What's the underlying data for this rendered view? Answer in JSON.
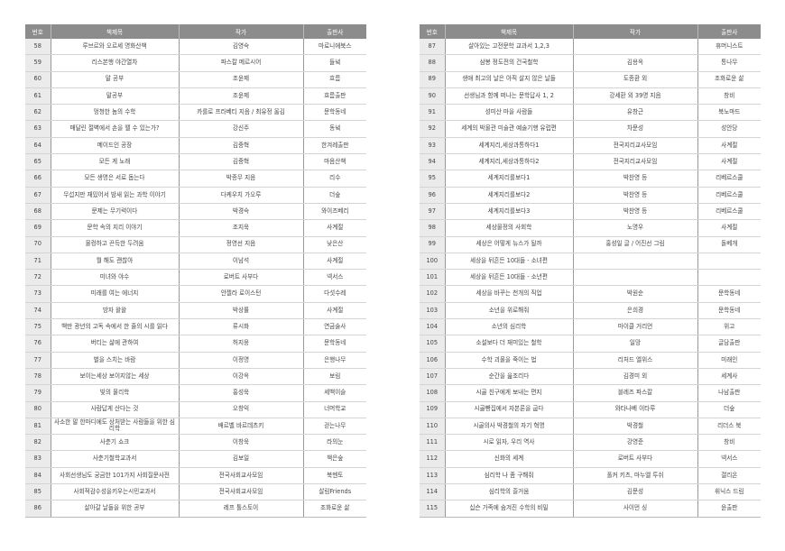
{
  "headers": [
    "번호",
    "책제목",
    "작가",
    "출판사"
  ],
  "left_rows": [
    [
      "58",
      "루브르와 오르세 명화산책",
      "김영숙",
      "마로니에북스"
    ],
    [
      "59",
      "리스본행 야간열차",
      "파스칼 메르시어",
      "들녘"
    ],
    [
      "60",
      "말 공부",
      "조윤제",
      "흐름"
    ],
    [
      "61",
      "말공부",
      "조윤제",
      "흐름출판"
    ],
    [
      "62",
      "멍청한 놈의 수학",
      "카를로 프라베티 지음 / 최유정 옮김",
      "문학동네"
    ],
    [
      "63",
      "매달린 절벽에서 손을 뗄 수 있는가?",
      "강신주",
      "동녘"
    ],
    [
      "64",
      "메이드인 공장",
      "김중혁",
      "한겨레출판"
    ],
    [
      "65",
      "모든 게 노래",
      "김중혁",
      "마음산책"
    ],
    [
      "66",
      "모든 생명은 서로 돕는다",
      "박종무 지음",
      "리수"
    ],
    [
      "67",
      "무섭지만 재밌어서 밤새 읽는 과학 이야기",
      "다케우치 가오루",
      "더숲"
    ],
    [
      "68",
      "문제는 무기력이다",
      "박경숙",
      "와이즈베리"
    ],
    [
      "69",
      "문학 속의 지리 이야기",
      "조지욱",
      "사계절"
    ],
    [
      "70",
      "물컹하고 끈득한 두려움",
      "정영선 지음",
      "낮은산"
    ],
    [
      "71",
      "뭘 해도 괜찮아",
      "이남석",
      "사계절"
    ],
    [
      "72",
      "미녀와 야수",
      "로버트 사부다",
      "넥서스"
    ],
    [
      "73",
      "미래를 여는 에너지",
      "안젤라 로이스턴",
      "다섯수레"
    ],
    [
      "74",
      "방자 왈왈",
      "박상률",
      "사계절"
    ],
    [
      "75",
      "백만 광년의 고독 속에서 한  줄의 시를 읽다",
      "류시화",
      "연금술사"
    ],
    [
      "76",
      "버티는 삶에 관하여",
      "허지웅",
      "문학동네"
    ],
    [
      "77",
      "별을 스치는 바람",
      "이정명",
      "은행나무"
    ],
    [
      "78",
      "보이는세상 보이지않는 세상",
      "이강옥",
      "보림"
    ],
    [
      "79",
      "빛의 물리학",
      "홍성욱",
      "세백이슬"
    ],
    [
      "80",
      "사람답게 산다는 것",
      "오창익",
      "너머학교"
    ],
    [
      "81",
      "사소한 말 한마디에도 상처받는 사람들을 위한 심리학",
      "배르벨 바르데츠키",
      "걷는나무"
    ],
    [
      "82",
      "사춘기 쇼크",
      "이창욱",
      "라의눈"
    ],
    [
      "83",
      "사춘기철학교과서",
      "김보일",
      "책은숲"
    ],
    [
      "84",
      "사회선생님도 궁금한 101가지  사회질문사전",
      "전국사회교사모임",
      "북멘토"
    ],
    [
      "85",
      "사회적감수성을키우는시민교과서",
      "전국사회교사모임",
      "살림Friends"
    ],
    [
      "86",
      "살아갈 날들을 위한 공부",
      "레프 톨스토이",
      "조화로운 삶"
    ]
  ],
  "right_rows": [
    [
      "87",
      "살아있는 고전문학 교과서 1,2,3",
      "",
      "휴머니스트"
    ],
    [
      "88",
      "삼봉 정도전의 건국철학",
      "김용옥",
      "통나무"
    ],
    [
      "89",
      "생애 최고의 날은 아직 살지 않은 날들",
      "도종환 외",
      "조화로운 삶"
    ],
    [
      "90",
      "선생님과 함께 떠나는 문학답사 1, 2",
      "강세환 외 39명 지음",
      "창비"
    ],
    [
      "91",
      "성미산 마을 사람들",
      "유창근",
      "북노마드"
    ],
    [
      "92",
      "세계의 박물관 미술관 예술기행  유럽편",
      "차문성",
      "성안당"
    ],
    [
      "93",
      "세계지리,세상과통하다1",
      "전국지리교사모임",
      "사계절"
    ],
    [
      "94",
      "세계지리,세상과통하다2",
      "전국지리교사모임",
      "사계절"
    ],
    [
      "95",
      "세계지리를보다1",
      "박찬영  등",
      "리베르스쿨"
    ],
    [
      "96",
      "세계지리를보다2",
      "박찬영  등",
      "리베르스쿨"
    ],
    [
      "97",
      "세계지리를보다3",
      "박찬영  등",
      "리베르스쿨"
    ],
    [
      "98",
      "세상물정의 사회학",
      "노명우",
      "사계절"
    ],
    [
      "99",
      "세상은 어떻게 뉴스가 될까",
      "홍성일 글 / 어진선 그림",
      "돌베개"
    ],
    [
      "100",
      "세상을 뒤흔든 10대들 - 소녀편",
      "",
      ""
    ],
    [
      "101",
      "세상을 뒤흔든 10대들 - 소년편",
      "",
      ""
    ],
    [
      "102",
      "세상을 바꾸는 천개의 직업",
      "박원순",
      "문학동네"
    ],
    [
      "103",
      "소년을 위로해줘",
      "은희경",
      "문학동네"
    ],
    [
      "104",
      "소년의 심리학",
      "마이클 거리언",
      "위고"
    ],
    [
      "105",
      "소설보다 더 재미있는 철학",
      "일망",
      "글담출판"
    ],
    [
      "106",
      "수학 괴물을 죽이는 법",
      "리처드 엘위스",
      "미래인"
    ],
    [
      "107",
      "순간을 읊조리다",
      "김경미 외",
      "세계사"
    ],
    [
      "108",
      "시골 친구에게 보내는 편지",
      "블레즈 파스칼",
      "나남출판"
    ],
    [
      "109",
      "시골빵집에서 자본론을 굽다",
      "와타나베 이타루",
      "더숲"
    ],
    [
      "110",
      "시골의사 박경철의 자기 혁명",
      "박경철",
      "리더스 북"
    ],
    [
      "111",
      "시로 읽자, 우리 역사",
      "강영준",
      "창비"
    ],
    [
      "112",
      "신화의 세계",
      "로버트 사부다",
      "넥서스"
    ],
    [
      "113",
      "심리학 나 좀 구해줘",
      "폴커 키츠, 마누엘 투쉬",
      "갤리온"
    ],
    [
      "114",
      "심리학의 즐거움",
      "김문성",
      "휘닉스 드림"
    ],
    [
      "115",
      "십슨 가족에 숨겨진 수학의 비밀",
      "사이먼 싱",
      "윤출판"
    ]
  ]
}
